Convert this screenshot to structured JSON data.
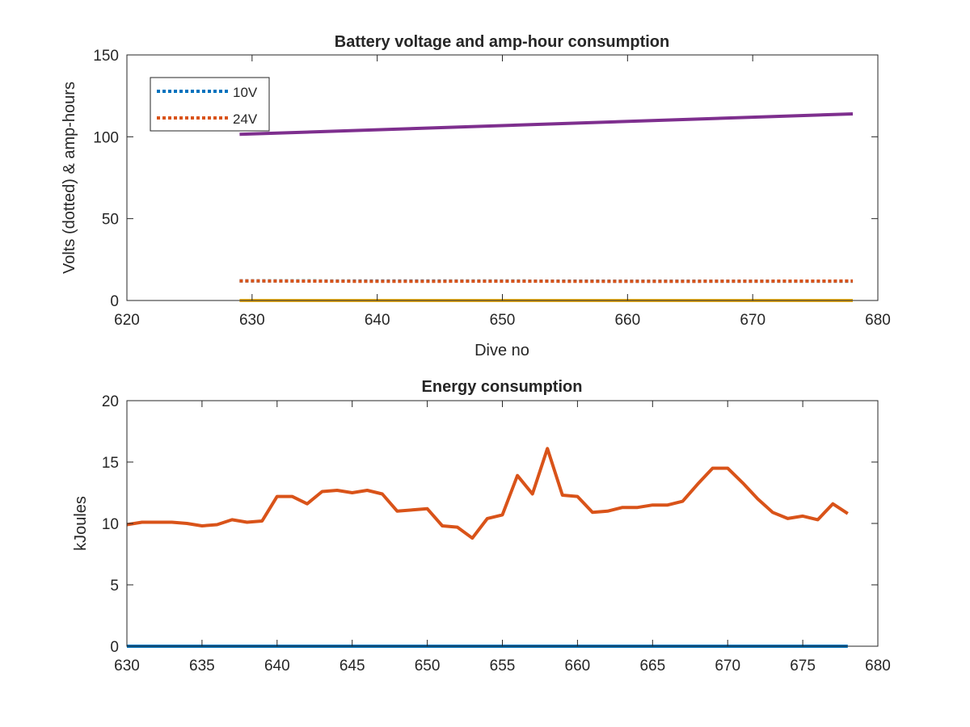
{
  "chart_data": [
    {
      "type": "line",
      "title": "Battery voltage and amp-hour consumption",
      "xlabel": "Dive no",
      "ylabel": "Volts (dotted) & amp-hours",
      "xlim": [
        620,
        680
      ],
      "ylim": [
        0,
        150
      ],
      "xticks": [
        620,
        630,
        640,
        650,
        660,
        670,
        680
      ],
      "yticks": [
        0,
        50,
        100,
        150
      ],
      "legend": {
        "placement": "top-left"
      },
      "series": [
        {
          "name": "10V",
          "color": "#0072BD",
          "style": "dotted",
          "x": [
            629,
            640,
            650,
            660,
            670,
            678
          ],
          "values": [
            12,
            11.9,
            11.9,
            11.8,
            11.8,
            11.8
          ]
        },
        {
          "name": "24V",
          "color": "#D95319",
          "style": "dotted",
          "x": [
            629,
            640,
            650,
            660,
            670,
            678
          ],
          "values": [
            12,
            11.7,
            11.8,
            11.7,
            11.8,
            11.9
          ]
        },
        {
          "color": "#EDB120",
          "style": "solid",
          "x": [
            629,
            678
          ],
          "values": [
            0,
            0
          ]
        },
        {
          "color": "#7E2F8E",
          "style": "solid",
          "x": [
            629,
            678
          ],
          "values": [
            101.5,
            114
          ]
        }
      ]
    },
    {
      "type": "line",
      "title": "Energy consumption",
      "xlabel": "",
      "ylabel": "kJoules",
      "xlim": [
        630,
        680
      ],
      "ylim": [
        0,
        20
      ],
      "xticks": [
        630,
        635,
        640,
        645,
        650,
        655,
        660,
        665,
        670,
        675,
        680
      ],
      "yticks": [
        0,
        5,
        10,
        15,
        20
      ],
      "series": [
        {
          "color": "#0072BD",
          "style": "solid",
          "x": [
            630,
            678
          ],
          "values": [
            0,
            0
          ]
        },
        {
          "color": "#D95319",
          "style": "solid",
          "x": [
            630,
            631,
            632,
            633,
            634,
            635,
            636,
            637,
            638,
            639,
            640,
            641,
            642,
            643,
            644,
            645,
            646,
            647,
            648,
            649,
            650,
            651,
            652,
            653,
            654,
            655,
            656,
            657,
            658,
            659,
            660,
            661,
            662,
            663,
            664,
            665,
            666,
            667,
            668,
            669,
            670,
            671,
            672,
            673,
            674,
            675,
            676,
            677,
            678
          ],
          "values": [
            9.9,
            10.1,
            10.1,
            10.1,
            10.0,
            9.8,
            9.9,
            10.3,
            10.1,
            10.2,
            12.2,
            12.2,
            11.6,
            12.6,
            12.7,
            12.5,
            12.7,
            12.4,
            11.0,
            11.1,
            11.2,
            9.8,
            9.7,
            8.8,
            10.4,
            10.7,
            13.9,
            12.4,
            16.1,
            12.3,
            12.2,
            10.9,
            11.0,
            11.3,
            11.3,
            11.5,
            11.5,
            11.8,
            13.2,
            14.5,
            14.5,
            13.3,
            12.0,
            10.9,
            10.4,
            10.6,
            10.3,
            11.6,
            10.8
          ]
        }
      ]
    }
  ]
}
